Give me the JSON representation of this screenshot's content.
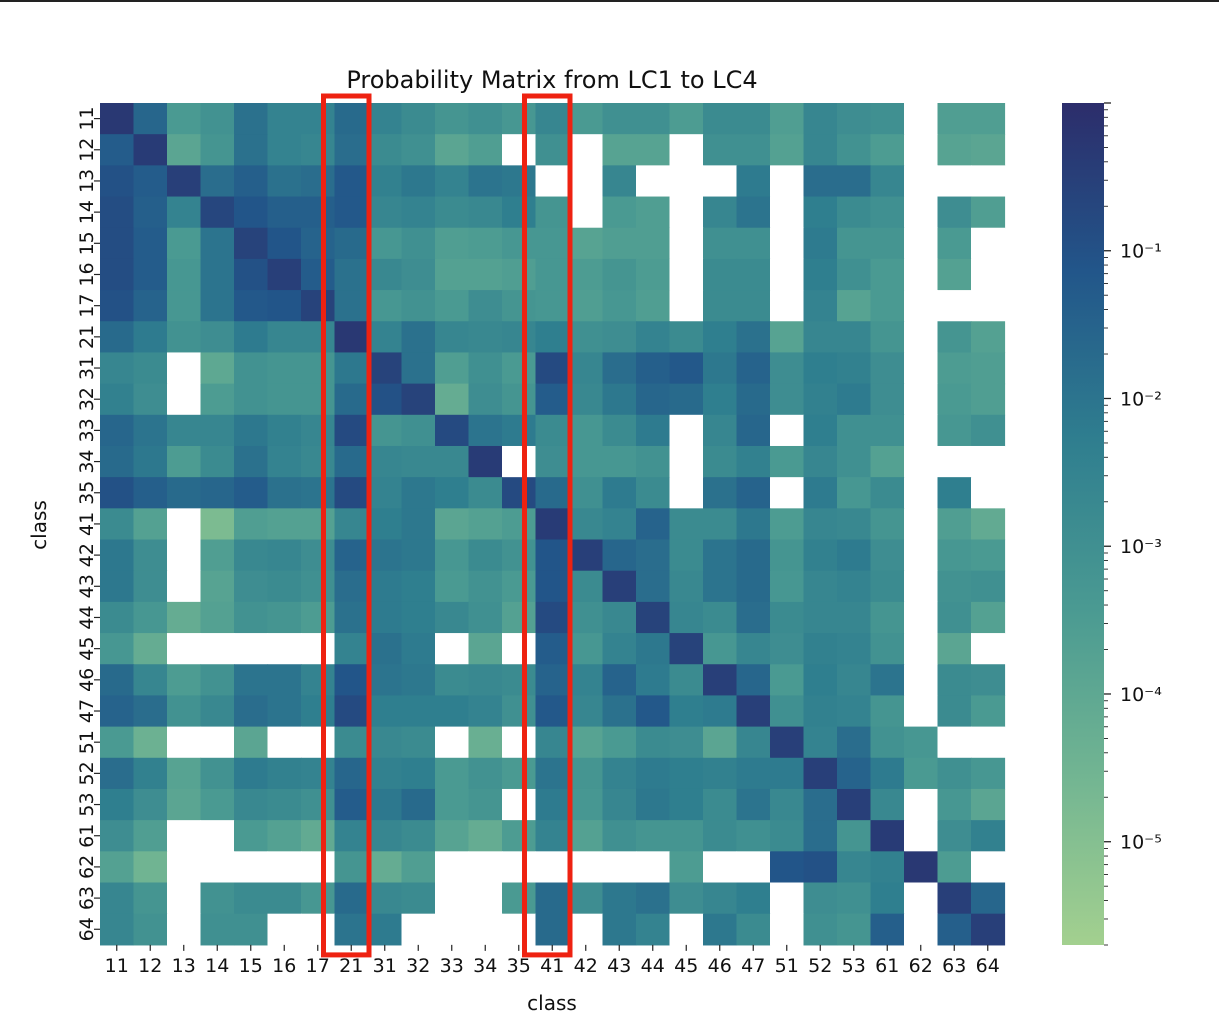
{
  "chart_data": {
    "type": "heatmap",
    "title": "Probability Matrix from LC1 to LC4",
    "xlabel": "class",
    "ylabel": "class",
    "x_categories": [
      "11",
      "12",
      "13",
      "14",
      "15",
      "16",
      "17",
      "21",
      "31",
      "32",
      "33",
      "34",
      "35",
      "41",
      "42",
      "43",
      "44",
      "45",
      "46",
      "47",
      "51",
      "52",
      "53",
      "61",
      "62",
      "63",
      "64"
    ],
    "y_categories": [
      "11",
      "12",
      "13",
      "14",
      "15",
      "16",
      "17",
      "21",
      "31",
      "32",
      "33",
      "34",
      "35",
      "41",
      "42",
      "43",
      "44",
      "45",
      "46",
      "47",
      "51",
      "52",
      "53",
      "61",
      "62",
      "63",
      "64"
    ],
    "colorbar": {
      "scale": "log",
      "range": [
        2e-06,
        1
      ],
      "tick_labels": [
        "10⁻¹",
        "10⁻²",
        "10⁻³",
        "10⁻⁴",
        "10⁻⁵"
      ],
      "tick_values": [
        0.1,
        0.01,
        0.001,
        0.0001,
        1e-05
      ],
      "colormap": "crest",
      "low_color": "#a3d08f",
      "high_color": "#2c2d6b"
    },
    "missing_color": "#ffffff",
    "highlight_color": "#ee2211",
    "highlighted_columns": [
      "21",
      "41"
    ],
    "values_log10": [
      [
        -0.3,
        -1.6,
        -3.4,
        -3.1,
        -1.9,
        -2.5,
        -2.5,
        -1.7,
        -2.5,
        -2.8,
        -3.2,
        -3.0,
        -3.3,
        -2.6,
        -3.4,
        -3.0,
        -3.0,
        -3.5,
        -2.8,
        -2.8,
        -3.6,
        -2.6,
        -2.9,
        -3.0,
        null,
        -3.6,
        -3.6
      ],
      [
        -1.3,
        -0.4,
        -3.9,
        -3.2,
        -1.9,
        -2.5,
        -2.6,
        -1.8,
        -2.8,
        -3.0,
        -3.9,
        -3.6,
        null,
        -3.0,
        null,
        -3.8,
        -3.8,
        null,
        -3.0,
        -3.0,
        -3.7,
        -2.6,
        -3.1,
        -3.5,
        null,
        -3.8,
        -3.9
      ],
      [
        -1.0,
        -1.3,
        -0.5,
        -1.8,
        -1.4,
        -1.9,
        -1.8,
        -1.2,
        -2.4,
        -2.1,
        -2.5,
        -2.0,
        -2.1,
        null,
        null,
        -2.6,
        null,
        null,
        null,
        -2.2,
        null,
        -1.8,
        -1.8,
        -2.6,
        null,
        null,
        null
      ],
      [
        -0.9,
        -1.4,
        -2.5,
        -0.7,
        -1.1,
        -1.4,
        -1.4,
        -1.2,
        -2.6,
        -2.5,
        -2.8,
        -2.7,
        -2.3,
        -3.2,
        null,
        -3.4,
        -3.6,
        null,
        -2.6,
        -2.0,
        null,
        -2.3,
        -2.8,
        -3.0,
        null,
        -2.9,
        -3.6
      ],
      [
        -0.9,
        -1.3,
        -3.4,
        -2.0,
        -0.6,
        -1.1,
        -1.5,
        -1.7,
        -3.3,
        -3.0,
        -3.6,
        -3.5,
        -3.3,
        -3.3,
        -3.8,
        -3.6,
        -3.6,
        null,
        -3.0,
        -3.0,
        null,
        -2.2,
        -3.2,
        -3.2,
        null,
        -3.4,
        null
      ],
      [
        -0.9,
        -1.3,
        -3.3,
        -2.0,
        -1.0,
        -0.5,
        -1.3,
        -1.9,
        -2.7,
        -2.9,
        -3.7,
        -3.7,
        -3.6,
        -3.3,
        -3.5,
        -3.2,
        -3.5,
        null,
        -2.8,
        -2.8,
        null,
        -2.3,
        -3.0,
        -3.4,
        null,
        -3.7,
        null
      ],
      [
        -1.0,
        -1.5,
        -3.3,
        -2.0,
        -1.2,
        -1.1,
        -0.6,
        -1.9,
        -3.3,
        -3.1,
        -3.4,
        -2.9,
        -3.2,
        -3.3,
        -3.6,
        -3.3,
        -3.6,
        null,
        -2.8,
        -2.8,
        null,
        -2.5,
        -3.8,
        -3.4,
        null,
        null,
        null
      ],
      [
        -1.7,
        -2.2,
        -3.1,
        -2.9,
        -2.2,
        -2.6,
        -2.6,
        -0.3,
        -2.5,
        -1.9,
        -2.6,
        -2.7,
        -2.6,
        -2.3,
        -3.0,
        -2.9,
        -2.5,
        -2.8,
        -2.3,
        -1.9,
        -3.8,
        -2.6,
        -2.6,
        -3.2,
        null,
        -3.2,
        -3.7
      ],
      [
        -2.6,
        -2.8,
        null,
        -4.0,
        -3.1,
        -3.2,
        -3.2,
        -2.1,
        -0.6,
        -1.9,
        -3.6,
        -3.0,
        -3.4,
        -0.8,
        -2.6,
        -1.8,
        -1.4,
        -1.2,
        -2.1,
        -1.5,
        -2.9,
        -2.3,
        -2.4,
        -2.9,
        null,
        -3.5,
        -3.6
      ],
      [
        -2.4,
        -2.9,
        null,
        -3.5,
        -3.1,
        -3.2,
        -3.2,
        -1.7,
        -1.0,
        -0.6,
        -4.2,
        -2.9,
        -3.2,
        -1.3,
        -2.7,
        -2.1,
        -1.6,
        -1.7,
        -2.3,
        -1.7,
        -2.9,
        -2.4,
        -2.2,
        -2.9,
        null,
        -3.4,
        -3.6
      ],
      [
        -1.6,
        -2.0,
        -2.6,
        -2.6,
        -2.1,
        -2.4,
        -2.6,
        -0.8,
        -3.2,
        -3.0,
        -0.8,
        -2.0,
        -2.2,
        -2.8,
        -3.3,
        -2.8,
        -2.2,
        null,
        -2.6,
        -1.6,
        null,
        -2.3,
        -3.0,
        -3.0,
        null,
        -3.3,
        -3.0
      ],
      [
        -1.7,
        -2.1,
        -3.5,
        -2.8,
        -1.9,
        -2.5,
        -2.7,
        -1.7,
        -2.6,
        -2.7,
        -2.7,
        -0.4,
        null,
        -2.9,
        -3.3,
        -3.3,
        -3.1,
        null,
        -2.8,
        -2.4,
        -3.4,
        -2.6,
        -3.0,
        -3.7,
        null,
        null,
        null
      ],
      [
        -1.0,
        -1.4,
        -1.7,
        -1.6,
        -1.3,
        -1.9,
        -2.0,
        -0.8,
        -2.5,
        -2.1,
        -2.3,
        -2.8,
        -0.8,
        -1.7,
        -3.0,
        -2.2,
        -2.8,
        null,
        -1.9,
        -1.5,
        null,
        -2.2,
        -3.3,
        -2.8,
        null,
        -2.3,
        null
      ],
      [
        -2.8,
        -3.7,
        null,
        -4.8,
        -3.6,
        -3.7,
        -3.7,
        -2.6,
        -2.3,
        -2.1,
        -3.9,
        -3.7,
        -3.5,
        -0.4,
        -2.7,
        -2.5,
        -1.5,
        -2.8,
        -2.8,
        -2.1,
        -3.5,
        -2.6,
        -2.7,
        -3.2,
        null,
        -3.6,
        -4.1
      ],
      [
        -2.1,
        -2.9,
        null,
        -3.6,
        -2.7,
        -2.6,
        -2.9,
        -1.5,
        -2.0,
        -2.1,
        -3.3,
        -2.8,
        -3.1,
        -1.1,
        -0.5,
        -1.6,
        -1.8,
        -2.8,
        -2.0,
        -1.7,
        -3.2,
        -2.4,
        -2.2,
        -2.9,
        null,
        -3.3,
        -3.4
      ],
      [
        -2.1,
        -2.9,
        null,
        -3.8,
        -2.9,
        -2.8,
        -3.0,
        -1.8,
        -2.2,
        -2.3,
        -3.4,
        -3.1,
        -3.4,
        -1.1,
        -2.8,
        -0.5,
        -1.8,
        -2.7,
        -2.0,
        -1.7,
        -3.3,
        -2.6,
        -2.5,
        -2.8,
        null,
        -3.1,
        -3.0
      ],
      [
        -2.8,
        -3.3,
        -4.2,
        -3.7,
        -3.1,
        -3.2,
        -3.5,
        -1.9,
        -2.2,
        -2.3,
        -2.7,
        -3.0,
        -3.7,
        -0.8,
        -3.0,
        -2.7,
        -0.6,
        -2.6,
        -2.8,
        -1.8,
        -2.8,
        -2.6,
        -2.6,
        -3.2,
        null,
        -3.0,
        -3.7
      ],
      [
        -3.3,
        -4.2,
        null,
        null,
        null,
        null,
        null,
        -2.5,
        -1.9,
        -2.2,
        null,
        -3.9,
        null,
        -1.3,
        -3.3,
        -2.5,
        -2.1,
        -0.6,
        -3.3,
        -2.6,
        -2.9,
        -2.4,
        -2.5,
        -3.1,
        null,
        -3.9,
        null
      ],
      [
        -1.7,
        -2.6,
        -3.5,
        -3.1,
        -2.0,
        -2.0,
        -2.5,
        -1.1,
        -2.0,
        -2.1,
        -2.8,
        -2.7,
        -2.8,
        -1.5,
        -2.5,
        -1.5,
        -2.2,
        -2.8,
        -0.5,
        -1.6,
        -3.4,
        -2.3,
        -2.6,
        -2.0,
        null,
        -2.8,
        -2.9
      ],
      [
        -1.5,
        -1.8,
        -3.1,
        -2.7,
        -1.8,
        -2.0,
        -2.3,
        -0.8,
        -2.3,
        -2.3,
        -2.3,
        -2.5,
        -3.0,
        -1.2,
        -2.6,
        -1.9,
        -1.2,
        -2.3,
        -2.2,
        -0.5,
        -3.0,
        -2.4,
        -2.5,
        -3.2,
        null,
        -2.8,
        -3.4
      ],
      [
        -3.4,
        -4.4,
        null,
        null,
        -3.9,
        null,
        null,
        -2.8,
        -2.7,
        -2.8,
        null,
        -4.3,
        null,
        -2.6,
        -3.8,
        -3.4,
        -2.8,
        -2.9,
        -3.9,
        -2.6,
        -0.5,
        -2.5,
        -1.8,
        -3.1,
        -3.3,
        null,
        null
      ],
      [
        -1.8,
        -2.4,
        -3.8,
        -3.1,
        -2.2,
        -2.4,
        -2.5,
        -1.6,
        -2.4,
        -2.3,
        -3.4,
        -3.1,
        -3.4,
        -2.0,
        -3.2,
        -2.5,
        -2.2,
        -2.3,
        -2.4,
        -2.2,
        -2.2,
        -0.5,
        -1.5,
        -2.2,
        -3.4,
        -3.0,
        -3.3
      ],
      [
        -2.3,
        -2.9,
        -3.9,
        -3.4,
        -2.7,
        -2.8,
        -3.0,
        -1.3,
        -2.1,
        -1.7,
        -3.4,
        -3.2,
        null,
        -2.2,
        -3.3,
        -2.6,
        -2.1,
        -2.3,
        -2.8,
        -2.0,
        -2.7,
        -1.8,
        -0.5,
        -2.7,
        null,
        -3.3,
        -3.9
      ],
      [
        -2.9,
        -3.6,
        null,
        null,
        -3.4,
        -3.7,
        -4.1,
        -2.5,
        -2.6,
        -2.8,
        -3.8,
        -4.2,
        -3.5,
        -2.5,
        -3.7,
        -3.0,
        -3.2,
        -3.2,
        -2.8,
        -3.0,
        -2.8,
        -1.8,
        -3.2,
        -0.4,
        null,
        -2.9,
        -2.4
      ],
      [
        -3.7,
        -4.5,
        null,
        null,
        null,
        null,
        null,
        -3.2,
        -4.2,
        -3.6,
        null,
        null,
        null,
        null,
        null,
        null,
        null,
        -3.5,
        null,
        null,
        -1.1,
        -1.0,
        -2.6,
        -2.4,
        -0.3,
        -3.5,
        null
      ],
      [
        -2.6,
        -3.2,
        null,
        -3.1,
        -2.8,
        -2.8,
        -3.3,
        -1.7,
        -2.7,
        -2.8,
        null,
        null,
        -3.4,
        -1.7,
        -2.9,
        -2.1,
        -1.9,
        -2.9,
        -2.6,
        -2.3,
        null,
        -2.9,
        -3.0,
        -2.3,
        null,
        -0.5,
        -1.6
      ],
      [
        -2.6,
        -3.1,
        null,
        -3.0,
        -3.0,
        null,
        null,
        -2.0,
        -2.2,
        null,
        null,
        null,
        null,
        -1.7,
        null,
        -2.1,
        -2.5,
        null,
        -2.1,
        -2.8,
        null,
        -3.0,
        -3.2,
        -1.4,
        null,
        -1.4,
        -0.5
      ]
    ]
  }
}
